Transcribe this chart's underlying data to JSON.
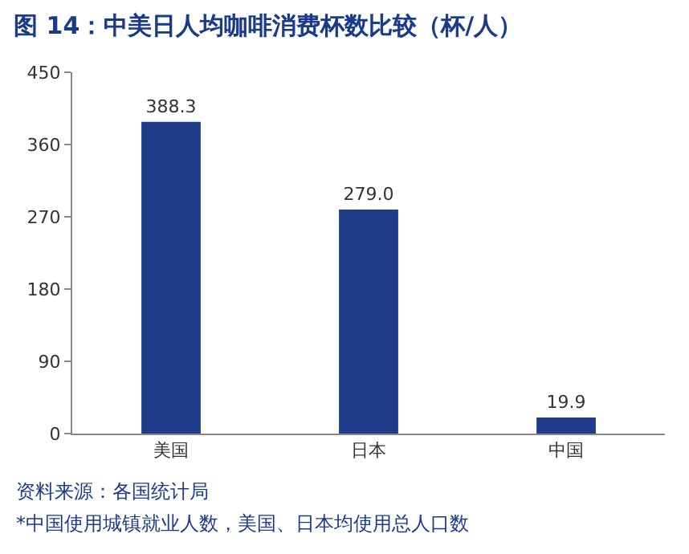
{
  "chart_data": {
    "type": "bar",
    "title": "图 14：中美日人均咖啡消费杯数比较（杯/人）",
    "categories": [
      "美国",
      "日本",
      "中国"
    ],
    "values": [
      388.3,
      279.0,
      19.9
    ],
    "value_labels": [
      "388.3",
      "279.0",
      "19.9"
    ],
    "color": "#1f3c88",
    "ylim": [
      0,
      450
    ],
    "yticks": [
      0,
      90,
      180,
      270,
      360,
      450
    ],
    "annotations": [
      "资料来源：各国统计局",
      "*中国使用城镇就业人数，美国、日本均使用总人口数"
    ]
  }
}
